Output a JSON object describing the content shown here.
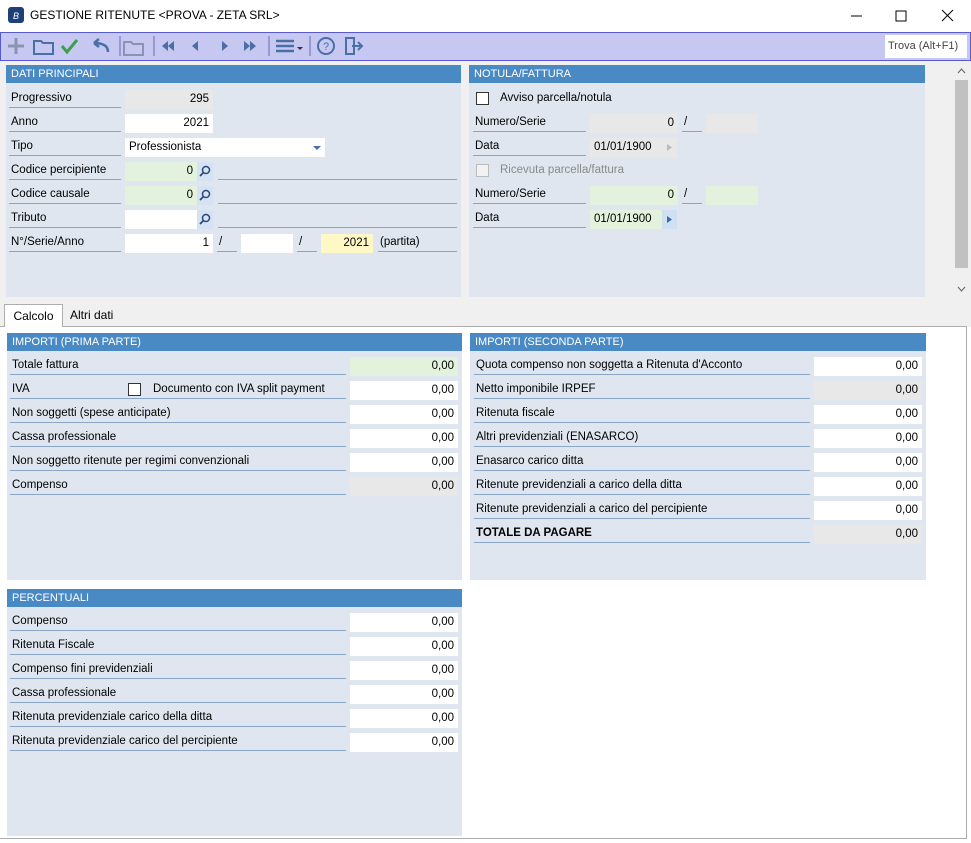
{
  "window": {
    "title": "GESTIONE RITENUTE <PROVA - ZETA SRL>"
  },
  "toolbar": {
    "search_placeholder": "Trova (Alt+F1)"
  },
  "dati_principali": {
    "title": "DATI PRINCIPALI",
    "progressivo": {
      "label": "Progressivo",
      "value": "295"
    },
    "anno": {
      "label": "Anno",
      "value": "2021"
    },
    "tipo": {
      "label": "Tipo",
      "value": "Professionista"
    },
    "codice_percipiente": {
      "label": "Codice percipiente",
      "value": "0"
    },
    "codice_causale": {
      "label": "Codice causale",
      "value": "0"
    },
    "tributo": {
      "label": "Tributo"
    },
    "numero_serie_anno": {
      "label": "N°/Serie/Anno",
      "numero": "1",
      "separator": "/",
      "anno": "2021",
      "note": "(partita)"
    }
  },
  "notula_fattura": {
    "title": "NOTULA/FATTURA",
    "avviso": {
      "label": "Avviso parcella/notula"
    },
    "numero_serie_avviso": {
      "label": "Numero/Serie",
      "value": "0",
      "separator": "/"
    },
    "data_avviso": {
      "label": "Data",
      "value": "01/01/1900"
    },
    "ricevuta": {
      "label": "Ricevuta parcella/fattura"
    },
    "numero_serie_ricevuta": {
      "label": "Numero/Serie",
      "value": "0",
      "separator": "/"
    },
    "data_ricevuta": {
      "label": "Data",
      "value": "01/01/1900"
    }
  },
  "tabs": [
    "Calcolo",
    "Altri dati"
  ],
  "importi_prima_parte": {
    "title": "IMPORTI (PRIMA PARTE)",
    "rows": [
      {
        "label": "Totale fattura",
        "value": "0,00"
      },
      {
        "label": "IVA",
        "checkbox_label": "Documento con IVA split payment",
        "value": "0,00"
      },
      {
        "label": "Non soggetti (spese anticipate)",
        "value": "0,00"
      },
      {
        "label": "Cassa professionale",
        "value": "0,00"
      },
      {
        "label": "Non soggetto ritenute per regimi convenzionali",
        "value": "0,00"
      },
      {
        "label": "Compenso",
        "value": "0,00"
      }
    ]
  },
  "importi_seconda_parte": {
    "title": "IMPORTI (SECONDA PARTE)",
    "rows": [
      {
        "label": "Quota compenso non soggetta a Ritenuta d'Acconto",
        "value": "0,00"
      },
      {
        "label": "Netto imponibile IRPEF",
        "value": "0,00"
      },
      {
        "label": "Ritenuta fiscale",
        "value": "0,00"
      },
      {
        "label": "Altri previdenziali (ENASARCO)",
        "value": "0,00"
      },
      {
        "label": "Enasarco carico ditta",
        "value": "0,00"
      },
      {
        "label": "Ritenute previdenziali a carico della ditta",
        "value": "0,00"
      },
      {
        "label": "Ritenute previdenziali a carico del percipiente",
        "value": "0,00"
      },
      {
        "label": "TOTALE DA PAGARE",
        "value": "0,00"
      }
    ]
  },
  "percentuali": {
    "title": "PERCENTUALI",
    "rows": [
      {
        "label": "Compenso",
        "value": "0,00"
      },
      {
        "label": "Ritenuta Fiscale",
        "value": "0,00"
      },
      {
        "label": "Compenso fini previdenziali",
        "value": "0,00"
      },
      {
        "label": "Cassa professionale",
        "value": "0,00"
      },
      {
        "label": "Ritenuta previdenziale carico della ditta",
        "value": "0,00"
      },
      {
        "label": "Ritenuta previdenziale carico del percipiente",
        "value": "0,00"
      }
    ]
  }
}
